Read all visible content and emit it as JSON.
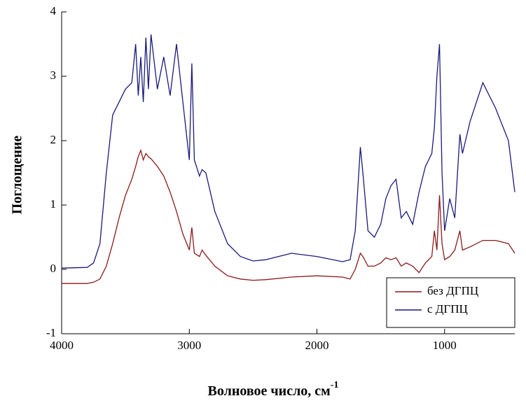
{
  "chart_data": {
    "type": "line",
    "x_label": "Волновое число, см",
    "x_label_sup": "-1",
    "y_label": "Поглощение",
    "x": [
      4000,
      3800,
      3750,
      3700,
      3650,
      3600,
      3550,
      3500,
      3450,
      3420,
      3400,
      3380,
      3360,
      3340,
      3320,
      3300,
      3250,
      3200,
      3150,
      3100,
      3050,
      3000,
      2980,
      2960,
      2920,
      2900,
      2870,
      2800,
      2700,
      2600,
      2500,
      2400,
      2200,
      2000,
      1800,
      1740,
      1700,
      1660,
      1640,
      1600,
      1550,
      1500,
      1460,
      1420,
      1380,
      1340,
      1300,
      1250,
      1200,
      1150,
      1100,
      1080,
      1060,
      1040,
      1020,
      1000,
      960,
      920,
      880,
      860,
      800,
      700,
      600,
      500,
      450
    ],
    "series": [
      {
        "name": "без ДГПЦ",
        "color": "#8b1a1a",
        "values": [
          -0.22,
          -0.22,
          -0.2,
          -0.15,
          0.05,
          0.4,
          0.8,
          1.15,
          1.4,
          1.6,
          1.75,
          1.85,
          1.7,
          1.8,
          1.75,
          1.72,
          1.6,
          1.45,
          1.2,
          0.9,
          0.55,
          0.3,
          0.65,
          0.25,
          0.2,
          0.3,
          0.22,
          0.05,
          -0.1,
          -0.15,
          -0.17,
          -0.16,
          -0.12,
          -0.1,
          -0.12,
          -0.15,
          0.0,
          0.25,
          0.2,
          0.05,
          0.05,
          0.1,
          0.18,
          0.15,
          0.18,
          0.05,
          0.1,
          0.05,
          -0.05,
          0.1,
          0.2,
          0.6,
          0.3,
          1.15,
          0.4,
          0.15,
          0.2,
          0.3,
          0.6,
          0.3,
          0.35,
          0.45,
          0.45,
          0.4,
          0.25
        ]
      },
      {
        "name": "с ДГПЦ",
        "color": "#1a1a7a",
        "values": [
          0.02,
          0.03,
          0.1,
          0.4,
          1.5,
          2.4,
          2.6,
          2.8,
          2.9,
          3.5,
          2.7,
          3.3,
          2.6,
          3.6,
          2.8,
          3.65,
          2.8,
          3.3,
          2.7,
          3.5,
          2.6,
          1.7,
          3.2,
          1.7,
          1.45,
          1.55,
          1.5,
          0.9,
          0.4,
          0.2,
          0.13,
          0.15,
          0.25,
          0.2,
          0.12,
          0.15,
          0.6,
          1.9,
          1.5,
          0.6,
          0.5,
          0.7,
          1.1,
          1.3,
          1.4,
          0.8,
          0.9,
          0.7,
          1.2,
          1.6,
          1.8,
          2.2,
          3.0,
          3.5,
          1.5,
          0.6,
          1.1,
          0.8,
          2.1,
          1.8,
          2.3,
          2.9,
          2.5,
          2.0,
          1.2
        ]
      }
    ],
    "xlim": [
      4000,
      450
    ],
    "xticks": [
      4000,
      3000,
      2000,
      1000
    ],
    "ylim": [
      -1,
      4
    ],
    "yticks": [
      -1,
      0,
      1,
      2,
      3,
      4
    ],
    "legend": "lower right"
  }
}
